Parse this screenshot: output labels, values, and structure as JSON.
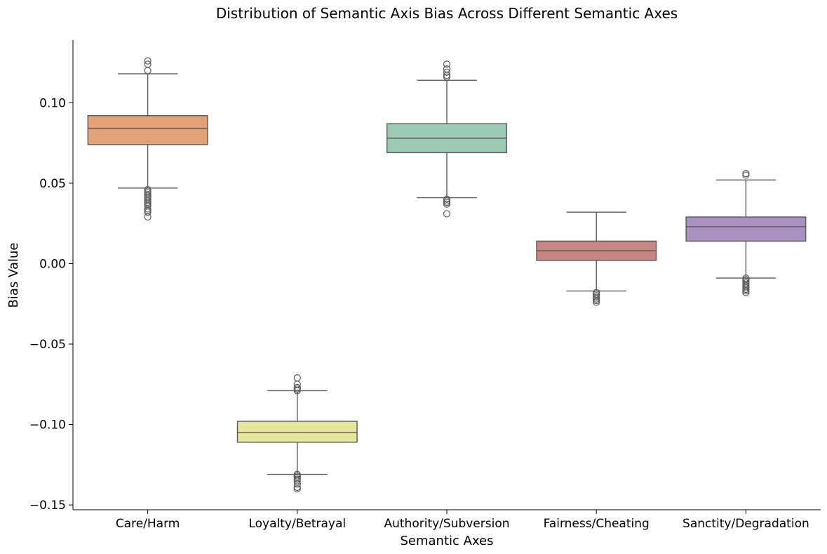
{
  "chart_data": {
    "type": "box",
    "title": "Distribution of Semantic Axis Bias Across Different Semantic Axes",
    "xlabel": "Semantic Axes",
    "ylabel": "Bias Value",
    "ylim": [
      -0.153,
      0.139
    ],
    "yticks": [
      -0.15,
      -0.1,
      -0.05,
      0.0,
      0.05,
      0.1
    ],
    "ytick_labels": [
      "−0.15",
      "−0.10",
      "−0.05",
      "0.00",
      "0.05",
      "0.10"
    ],
    "grid": false,
    "categories": [
      "Care/Harm",
      "Loyalty/Betrayal",
      "Authority/Subversion",
      "Fairness/Cheating",
      "Sanctity/Degradation"
    ],
    "boxes": [
      {
        "category": "Care/Harm",
        "color": "#e0a276",
        "whisker_low": 0.047,
        "q1": 0.074,
        "median": 0.084,
        "q3": 0.092,
        "whisker_high": 0.118,
        "outliers": [
          0.126,
          0.124,
          0.12,
          0.046,
          0.045,
          0.044,
          0.043,
          0.042,
          0.041,
          0.04,
          0.039,
          0.038,
          0.037,
          0.036,
          0.034,
          0.033,
          0.032,
          0.029
        ]
      },
      {
        "category": "Loyalty/Betrayal",
        "color": "#e5e59c",
        "whisker_low": -0.131,
        "q1": -0.111,
        "median": -0.105,
        "q3": -0.098,
        "whisker_high": -0.079,
        "outliers": [
          -0.071,
          -0.075,
          -0.077,
          -0.078,
          -0.079,
          -0.131,
          -0.132,
          -0.133,
          -0.134,
          -0.135,
          -0.137,
          -0.139,
          -0.14
        ]
      },
      {
        "category": "Authority/Subversion",
        "color": "#9ccab5",
        "whisker_low": 0.041,
        "q1": 0.069,
        "median": 0.078,
        "q3": 0.087,
        "whisker_high": 0.114,
        "outliers": [
          0.124,
          0.121,
          0.119,
          0.117,
          0.116,
          0.04,
          0.039,
          0.038,
          0.037,
          0.031
        ]
      },
      {
        "category": "Fairness/Cheating",
        "color": "#c98582",
        "whisker_low": -0.017,
        "q1": 0.002,
        "median": 0.008,
        "q3": 0.014,
        "whisker_high": 0.032,
        "outliers": [
          -0.018,
          -0.019,
          -0.02,
          -0.021,
          -0.022,
          -0.023,
          -0.024
        ]
      },
      {
        "category": "Sanctity/Degradation",
        "color": "#a991c2",
        "whisker_low": -0.009,
        "q1": 0.014,
        "median": 0.023,
        "q3": 0.029,
        "whisker_high": 0.052,
        "outliers": [
          0.056,
          0.055,
          -0.009,
          -0.01,
          -0.011,
          -0.012,
          -0.013,
          -0.014,
          -0.015,
          -0.016,
          -0.017,
          -0.018
        ]
      }
    ]
  }
}
